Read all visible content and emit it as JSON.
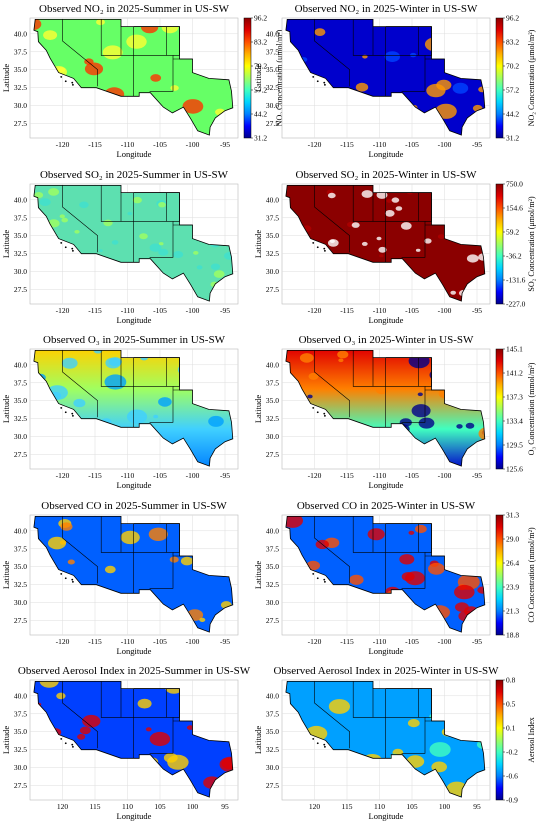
{
  "colormap": [
    "#00008b",
    "#0000ff",
    "#0080ff",
    "#00d4ff",
    "#40ffc0",
    "#a0ff60",
    "#ffff00",
    "#ffb000",
    "#ff5000",
    "#e00000",
    "#8b0000"
  ],
  "state_border_color": "#000000",
  "gridline_color": "#dddddd",
  "chart_data": [
    {
      "type": "heatmap",
      "title": "Observed NO₂ in 2025-Summer in US-SW",
      "xlabel": "Longitude",
      "ylabel": "Latitude",
      "xticks": [
        "-120",
        "-115",
        "-110",
        "-105",
        "-100",
        "-95"
      ],
      "yticks": [
        "40.0",
        "37.5",
        "35.0",
        "32.5",
        "30.0",
        "27.5"
      ],
      "background": "green",
      "hotspots": "red at coasts and cities",
      "colorbar": {
        "label": "NO₂ Concentration (μmol/m²)",
        "ticks": [
          "96.2",
          "83.2",
          "70.2",
          "57.2",
          "44.2",
          "31.2"
        ],
        "range": [
          31.2,
          96.2
        ]
      }
    },
    {
      "type": "heatmap",
      "title": "Observed NO₂ in 2025-Winter in US-SW",
      "xlabel": "Longitude",
      "ylabel": "Latitude",
      "xticks": [
        "-120",
        "-115",
        "-110",
        "-105",
        "-100",
        "-95"
      ],
      "yticks": [
        "40.0",
        "37.5",
        "35.0",
        "32.5",
        "30.0",
        "27.5"
      ],
      "background": "blue",
      "hotspots": "orange at cities",
      "colorbar": {
        "label": "NO₂ Concentration (μmol/m²)",
        "ticks": [
          "96.2",
          "83.2",
          "70.2",
          "57.2",
          "44.2",
          "31.2"
        ],
        "range": [
          31.2,
          96.2
        ]
      }
    },
    {
      "type": "heatmap",
      "title": "Observed SO₂ in 2025-Summer in US-SW",
      "xlabel": "Longitude",
      "ylabel": "Latitude",
      "xticks": [
        "-120",
        "-115",
        "-110",
        "-105",
        "-100",
        "-95"
      ],
      "yticks": [
        "40.0",
        "37.5",
        "35.0",
        "32.5",
        "30.0",
        "27.5"
      ],
      "background": "cyan-green noisy"
    },
    {
      "type": "heatmap",
      "title": "Observed SO₂ in 2025-Winter in US-SW",
      "xlabel": "Longitude",
      "ylabel": "Latitude",
      "xticks": [
        "-120",
        "-115",
        "-110",
        "-105",
        "-100",
        "-95"
      ],
      "yticks": [
        "40.0",
        "37.5",
        "35.0",
        "32.5",
        "30.0",
        "27.5"
      ],
      "background": "dark red noisy",
      "colorbar": {
        "label": "SO₂ Concentration (μmol/m²)",
        "ticks": [
          "750.0",
          "154.6",
          "59.2",
          "-36.2",
          "-131.6",
          "-227.0"
        ],
        "range": [
          -227.0,
          750.0
        ]
      }
    },
    {
      "type": "heatmap",
      "title": "Observed O₃ in 2025-Summer in US-SW",
      "xlabel": "Longitude",
      "ylabel": "Latitude",
      "xticks": [
        "-120",
        "-115",
        "-110",
        "-105",
        "-100",
        "-95"
      ],
      "yticks": [
        "40.0",
        "37.5",
        "35.0",
        "32.5",
        "30.0",
        "27.5"
      ],
      "background": "north yellow to south blue"
    },
    {
      "type": "heatmap",
      "title": "Observed O₃ in 2025-Winter in US-SW",
      "xlabel": "Longitude",
      "ylabel": "Latitude",
      "xticks": [
        "-120",
        "-115",
        "-110",
        "-105",
        "-100",
        "-95"
      ],
      "yticks": [
        "40.0",
        "37.5",
        "35.0",
        "32.5",
        "30.0",
        "27.5"
      ],
      "background": "north red to south dark blue",
      "colorbar": {
        "label": "O₃ Concentration (mmol/m²)",
        "ticks": [
          "145.1",
          "141.2",
          "137.3",
          "133.4",
          "129.5",
          "125.6"
        ],
        "range": [
          125.6,
          145.1
        ]
      }
    },
    {
      "type": "heatmap",
      "title": "Observed CO in 2025-Summer in US-SW",
      "xlabel": "Longitude",
      "ylabel": "Latitude",
      "xticks": [
        "-120",
        "-115",
        "-110",
        "-105",
        "-100",
        "-95"
      ],
      "yticks": [
        "40.0",
        "37.5",
        "35.0",
        "32.5",
        "30.0",
        "27.5"
      ],
      "background": "mountains blue, lowlands yellow-orange"
    },
    {
      "type": "heatmap",
      "title": "Observed CO in 2025-Winter in US-SW",
      "xlabel": "Longitude",
      "ylabel": "Latitude",
      "xticks": [
        "-120",
        "-115",
        "-110",
        "-105",
        "-100",
        "-95"
      ],
      "yticks": [
        "40.0",
        "37.5",
        "35.0",
        "32.5",
        "30.0",
        "27.5"
      ],
      "background": "mountains blue, lowlands red",
      "colorbar": {
        "label": "CO Concentration (mmol/m²)",
        "ticks": [
          "31.3",
          "29.0",
          "26.4",
          "23.9",
          "21.3",
          "18.8"
        ],
        "range": [
          18.8,
          31.3
        ]
      }
    },
    {
      "type": "heatmap",
      "title": "Observed Aerosol Index in 2025-Summer in US-SW",
      "xlabel": "Longitude",
      "ylabel": "Latitude",
      "xticks": [
        "120",
        "115",
        "110",
        "105",
        "100",
        "95"
      ],
      "yticks": [
        "40.0",
        "37.5",
        "35.0",
        "32.5",
        "30.0",
        "27.5"
      ],
      "background": "mixed blue/yellow/red"
    },
    {
      "type": "heatmap",
      "title": "Observed Aerosol Index in 2025-Winter in US-SW",
      "xlabel": "Longitude",
      "ylabel": "Latitude",
      "xticks": [
        "120",
        "115",
        "110",
        "105",
        "100",
        "95"
      ],
      "yticks": [
        "40.0",
        "37.5",
        "35.0",
        "32.5",
        "30.0",
        "27.5"
      ],
      "background": "mostly blue-cyan with yellow",
      "colorbar": {
        "label": "Aerosol Index",
        "ticks": [
          "0.8",
          "0.5",
          "0.1",
          "-0.2",
          "-0.6",
          "-0.9"
        ],
        "range": [
          -0.9,
          0.8
        ]
      }
    }
  ]
}
